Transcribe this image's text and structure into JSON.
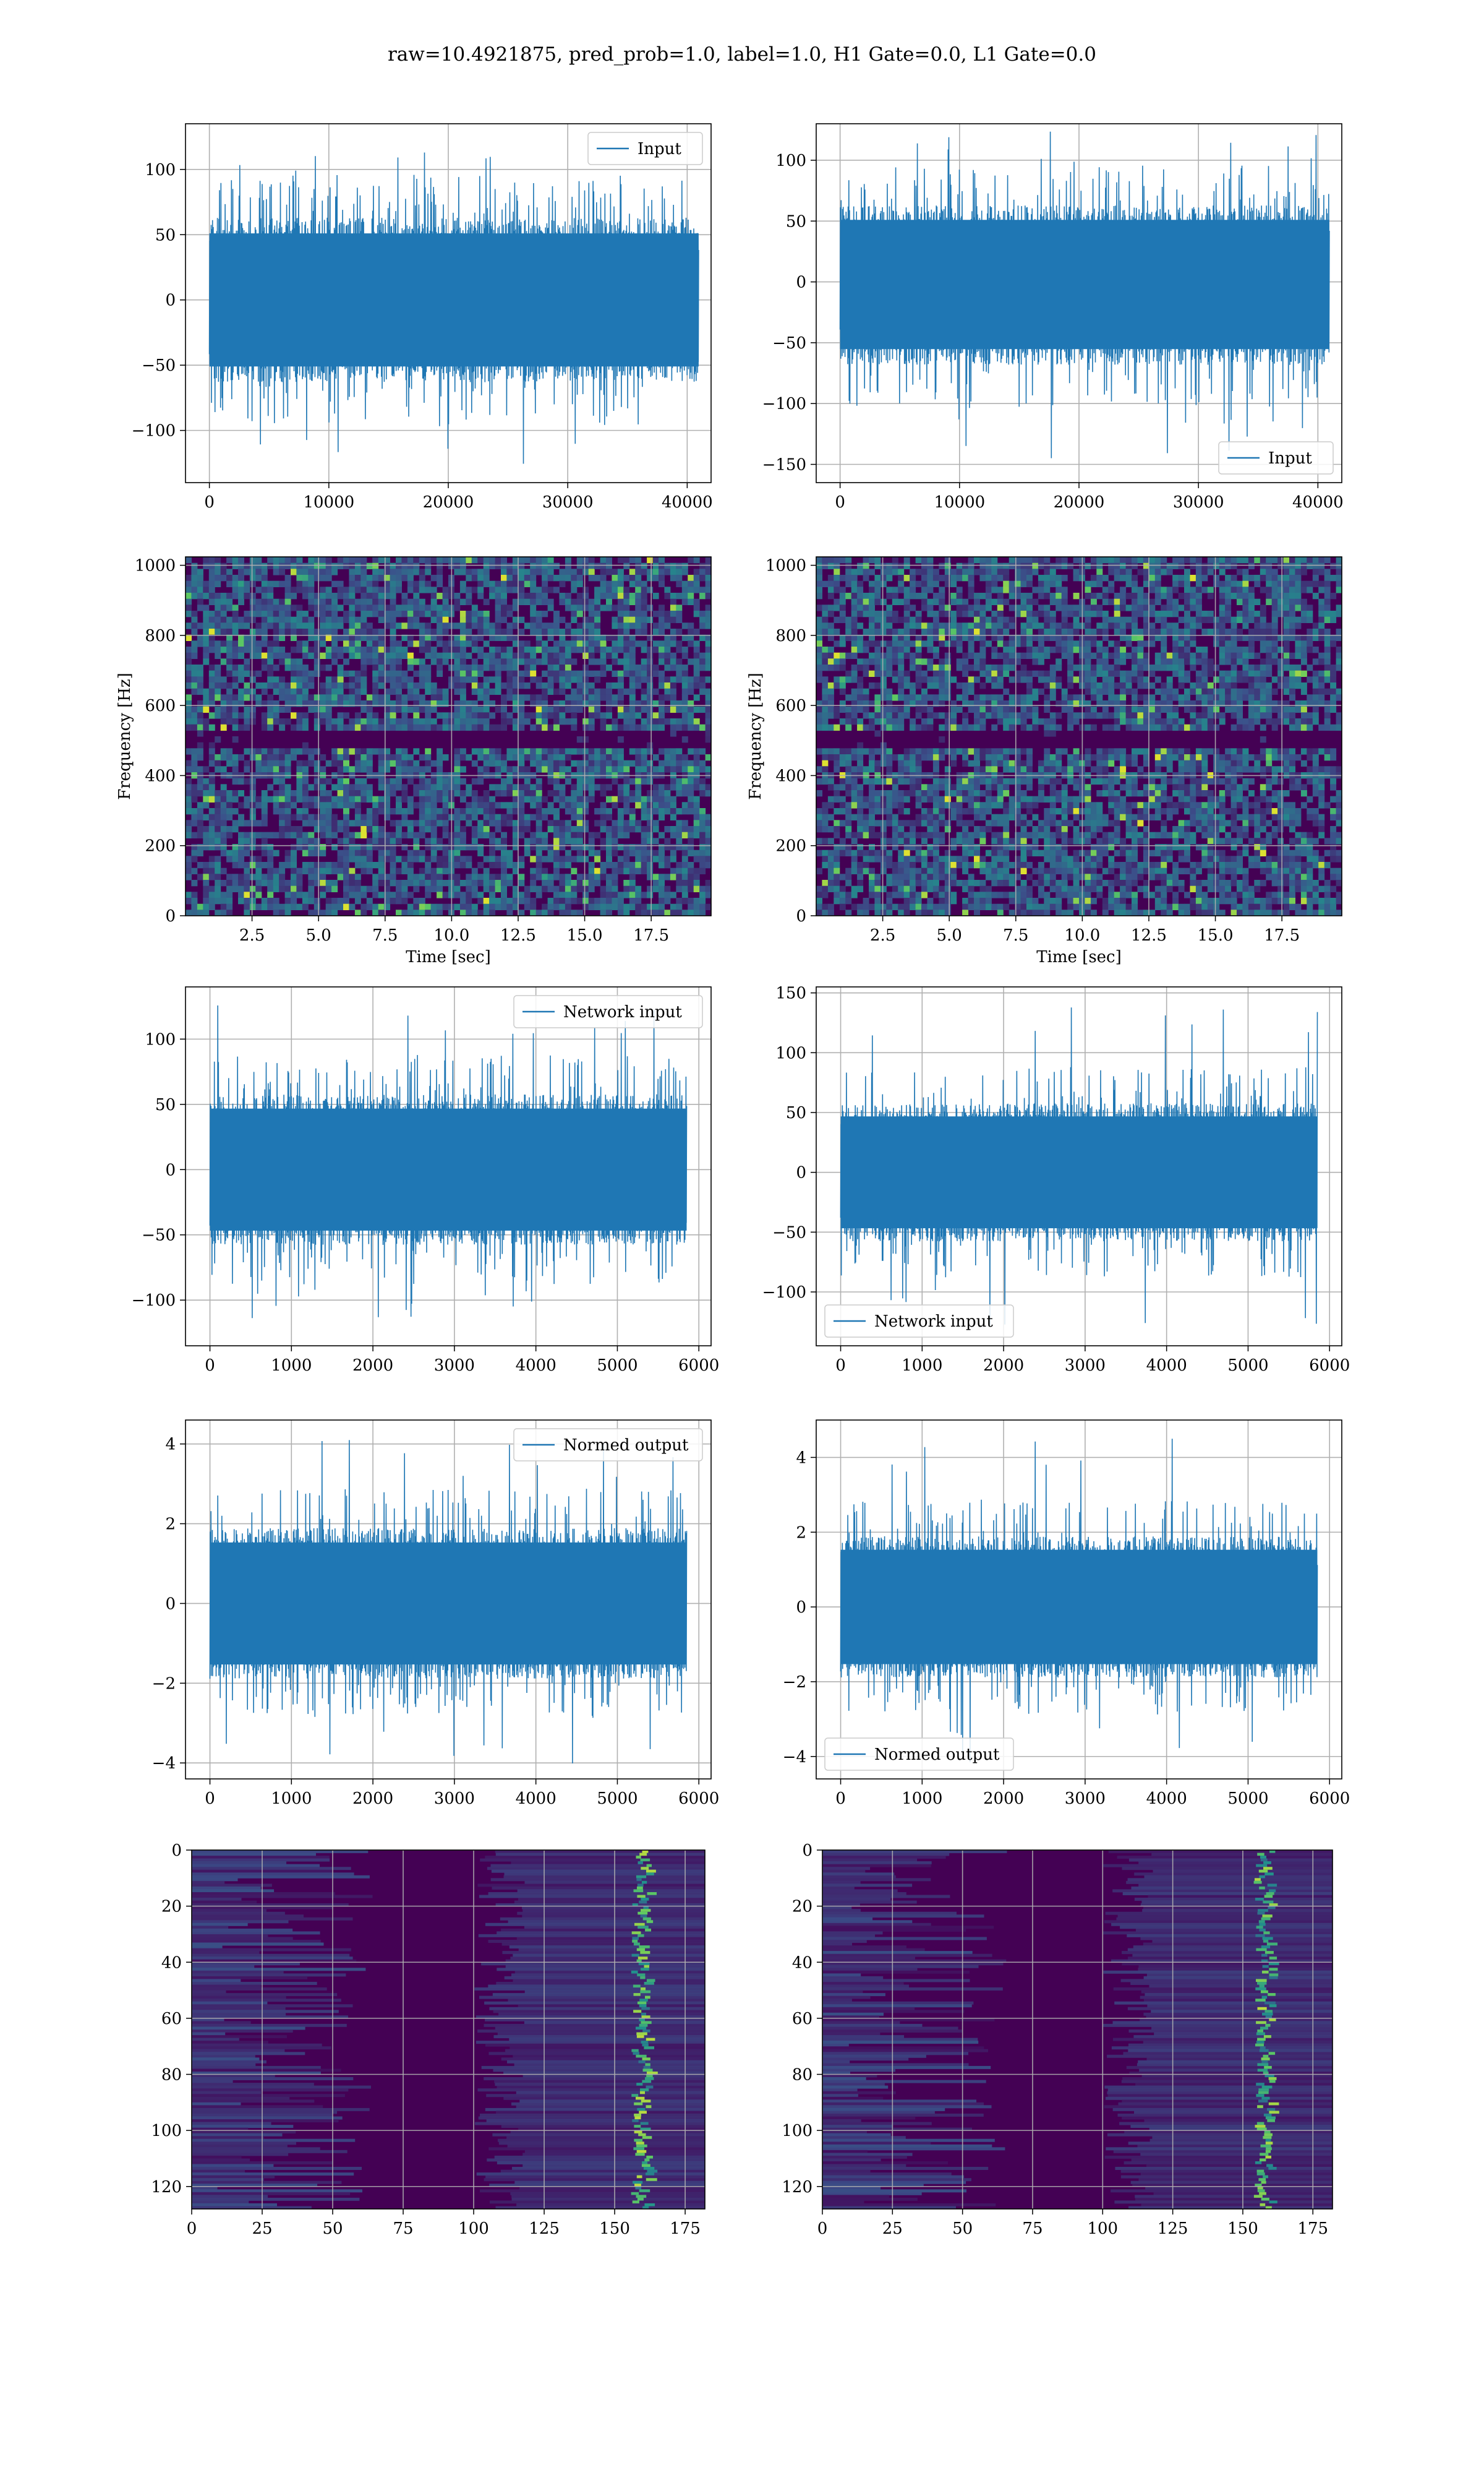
{
  "figure": {
    "suptitle": "raw=10.4921875, pred_prob=1.0, label=1.0, H1 Gate=0.0, L1 Gate=0.0"
  },
  "colors": {
    "line": "#1f77b4",
    "grid": "#b0b0b0",
    "viridis_dark": "#440154",
    "viridis_mid": "#21918c",
    "viridis_bright": "#fde725"
  },
  "chart_data": [
    {
      "id": "input_h1",
      "type": "line",
      "column": "left",
      "legend": "Input",
      "legend_loc": "upper right",
      "xlim": [
        -2000,
        42000
      ],
      "ylim": [
        -140,
        135
      ],
      "xticks": [
        0,
        10000,
        20000,
        30000,
        40000
      ],
      "yticks": [
        -100,
        -50,
        0,
        50,
        100
      ],
      "n_samples": 40960,
      "series": [
        {
          "name": "Input",
          "envelope_low": -60,
          "envelope_high": 60,
          "peak_low": -128,
          "peak_high": 115
        }
      ],
      "grid": true
    },
    {
      "id": "input_l1",
      "type": "line",
      "column": "right",
      "legend": "Input",
      "legend_loc": "lower right",
      "xlim": [
        -2000,
        42000
      ],
      "ylim": [
        -165,
        130
      ],
      "xticks": [
        0,
        10000,
        20000,
        30000,
        40000
      ],
      "yticks": [
        -150,
        -100,
        -50,
        0,
        50,
        100
      ],
      "n_samples": 40960,
      "series": [
        {
          "name": "Input",
          "envelope_low": -65,
          "envelope_high": 60,
          "peak_low": -150,
          "peak_high": 130
        }
      ],
      "grid": true
    },
    {
      "id": "spec_h1",
      "type": "heatmap",
      "column": "left",
      "xlabel": "Time [sec]",
      "ylabel": "Frequency [Hz]",
      "xlim": [
        0,
        19.75
      ],
      "ylim": [
        0,
        1024
      ],
      "xticks": [
        "2.5",
        "5.0",
        "7.5",
        "10.0",
        "12.5",
        "15.0",
        "17.5"
      ],
      "yticks": [
        "0",
        "200",
        "400",
        "600",
        "800",
        "1000"
      ],
      "colormap": "viridis",
      "dark_band_hz": 512,
      "grid": true
    },
    {
      "id": "spec_l1",
      "type": "heatmap",
      "column": "right",
      "xlabel": "Time [sec]",
      "ylabel": "Frequency [Hz]",
      "xlim": [
        0,
        19.75
      ],
      "ylim": [
        0,
        1024
      ],
      "xticks": [
        "2.5",
        "5.0",
        "7.5",
        "10.0",
        "12.5",
        "15.0",
        "17.5"
      ],
      "yticks": [
        "0",
        "200",
        "400",
        "600",
        "800",
        "1000"
      ],
      "colormap": "viridis",
      "dark_band_hz": 512,
      "grid": true
    },
    {
      "id": "net_h1",
      "type": "line",
      "column": "left",
      "legend": "Network input",
      "legend_loc": "upper right",
      "xlim": [
        -300,
        6150
      ],
      "ylim": [
        -135,
        140
      ],
      "xticks": [
        0,
        1000,
        2000,
        3000,
        4000,
        5000,
        6000
      ],
      "yticks": [
        -100,
        -50,
        0,
        50,
        100
      ],
      "n_samples": 5850,
      "series": [
        {
          "name": "Network input",
          "envelope_low": -55,
          "envelope_high": 55,
          "peak_low": -122,
          "peak_high": 130
        }
      ],
      "grid": true
    },
    {
      "id": "net_l1",
      "type": "line",
      "column": "right",
      "legend": "Network input",
      "legend_loc": "lower left",
      "xlim": [
        -300,
        6150
      ],
      "ylim": [
        -145,
        155
      ],
      "xticks": [
        0,
        1000,
        2000,
        3000,
        4000,
        5000,
        6000
      ],
      "yticks": [
        -100,
        -50,
        0,
        50,
        100,
        150
      ],
      "n_samples": 5850,
      "series": [
        {
          "name": "Network input",
          "envelope_low": -55,
          "envelope_high": 55,
          "peak_low": -130,
          "peak_high": 142
        }
      ],
      "grid": true
    },
    {
      "id": "norm_h1",
      "type": "line",
      "column": "left",
      "legend": "Normed output",
      "legend_loc": "upper right",
      "xlim": [
        -300,
        6150
      ],
      "ylim": [
        -4.4,
        4.6
      ],
      "xticks": [
        0,
        1000,
        2000,
        3000,
        4000,
        5000,
        6000
      ],
      "yticks": [
        -4,
        -2,
        0,
        2,
        4
      ],
      "n_samples": 5850,
      "series": [
        {
          "name": "Normed output",
          "envelope_low": -1.8,
          "envelope_high": 1.8,
          "peak_low": -4.1,
          "peak_high": 4.2
        }
      ],
      "grid": true
    },
    {
      "id": "norm_l1",
      "type": "line",
      "column": "right",
      "legend": "Normed output",
      "legend_loc": "lower left",
      "xlim": [
        -300,
        6150
      ],
      "ylim": [
        -4.6,
        5.0
      ],
      "xticks": [
        0,
        1000,
        2000,
        3000,
        4000,
        5000,
        6000
      ],
      "yticks": [
        -4,
        -2,
        0,
        2,
        4
      ],
      "n_samples": 5850,
      "series": [
        {
          "name": "Normed output",
          "envelope_low": -1.8,
          "envelope_high": 1.8,
          "peak_low": -4.2,
          "peak_high": 4.6
        }
      ],
      "grid": true
    },
    {
      "id": "feat_h1",
      "type": "heatmap",
      "column": "left",
      "xlim": [
        0,
        182
      ],
      "ylim": [
        128,
        0
      ],
      "xticks": [
        "0",
        "25",
        "50",
        "75",
        "100",
        "125",
        "150",
        "175"
      ],
      "yticks": [
        "0",
        "20",
        "40",
        "60",
        "80",
        "100",
        "120"
      ],
      "colormap": "viridis",
      "bright_track_x": 160,
      "grid": true
    },
    {
      "id": "feat_l1",
      "type": "heatmap",
      "column": "right",
      "xlim": [
        0,
        182
      ],
      "ylim": [
        128,
        0
      ],
      "xticks": [
        "0",
        "25",
        "50",
        "75",
        "100",
        "125",
        "150",
        "175"
      ],
      "yticks": [
        "0",
        "20",
        "40",
        "60",
        "80",
        "100",
        "120"
      ],
      "colormap": "viridis",
      "bright_track_x": 158,
      "grid": true
    }
  ]
}
